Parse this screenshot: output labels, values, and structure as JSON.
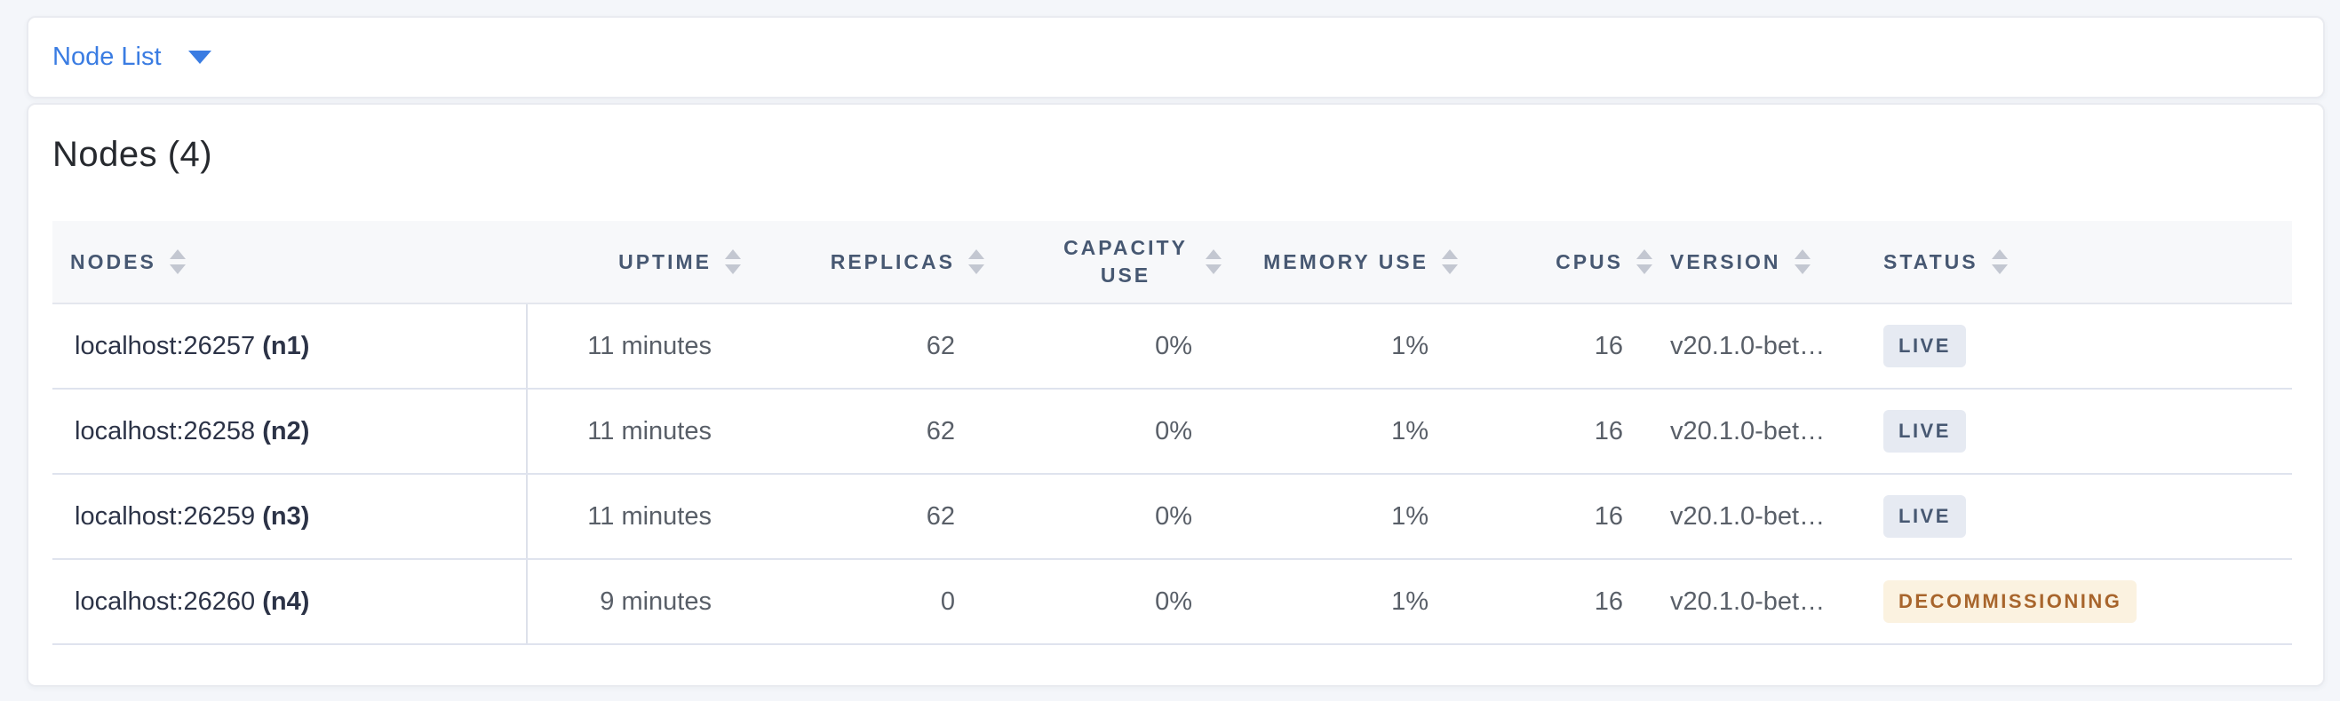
{
  "view_selector": {
    "label": "Node List"
  },
  "panel": {
    "title": "Nodes (4)"
  },
  "table": {
    "columns": [
      {
        "label": "NODES"
      },
      {
        "label": "UPTIME"
      },
      {
        "label": "REPLICAS"
      },
      {
        "label": "CAPACITY USE"
      },
      {
        "label": "MEMORY USE"
      },
      {
        "label": "CPUS"
      },
      {
        "label": "VERSION"
      },
      {
        "label": "STATUS"
      }
    ],
    "rows": [
      {
        "node": "localhost:26257",
        "node_id": "(n1)",
        "uptime": "11 minutes",
        "replicas": "62",
        "capacity_use": "0%",
        "memory_use": "1%",
        "cpus": "16",
        "version": "v20.1.0-bet…",
        "status": {
          "label": "LIVE",
          "type": "live"
        }
      },
      {
        "node": "localhost:26258",
        "node_id": "(n2)",
        "uptime": "11 minutes",
        "replicas": "62",
        "capacity_use": "0%",
        "memory_use": "1%",
        "cpus": "16",
        "version": "v20.1.0-bet…",
        "status": {
          "label": "LIVE",
          "type": "live"
        }
      },
      {
        "node": "localhost:26259",
        "node_id": "(n3)",
        "uptime": "11 minutes",
        "replicas": "62",
        "capacity_use": "0%",
        "memory_use": "1%",
        "cpus": "16",
        "version": "v20.1.0-bet…",
        "status": {
          "label": "LIVE",
          "type": "live"
        }
      },
      {
        "node": "localhost:26260",
        "node_id": "(n4)",
        "uptime": "9 minutes",
        "replicas": "0",
        "capacity_use": "0%",
        "memory_use": "1%",
        "cpus": "16",
        "version": "v20.1.0-bet…",
        "status": {
          "label": "DECOMMISSIONING",
          "type": "decommissioning"
        }
      }
    ]
  },
  "colors": {
    "accent": "#3a7ce2",
    "header_text": "#475872",
    "title_text": "#26292e",
    "live_badge_bg": "#e6eaf2",
    "live_badge_text": "#475872",
    "warning_badge_bg": "#fbf2e0",
    "warning_badge_text": "#a8652c"
  }
}
